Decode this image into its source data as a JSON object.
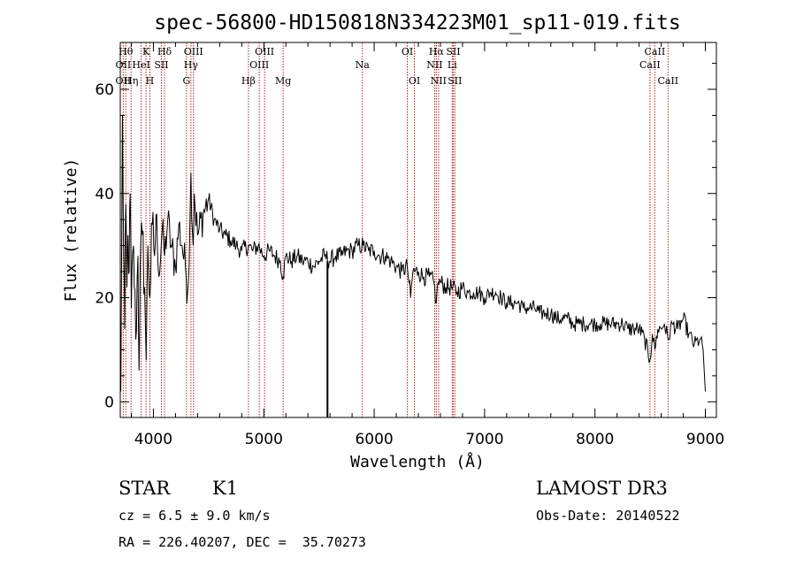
{
  "chart_data": {
    "type": "line",
    "title": "spec-56800-HD150818N334223M01_sp11-019.fits",
    "xlabel": "Wavelength (Å)",
    "ylabel": "Flux (relative)",
    "xlim": [
      3700,
      9100
    ],
    "ylim": [
      -3,
      69
    ],
    "xticks": [
      4000,
      5000,
      6000,
      7000,
      8000,
      9000
    ],
    "yticks": [
      0,
      20,
      40,
      60
    ],
    "series": [
      {
        "name": "spectrum",
        "x": [
          3705,
          3720,
          3730,
          3740,
          3750,
          3760,
          3770,
          3780,
          3790,
          3800,
          3820,
          3840,
          3860,
          3870,
          3880,
          3900,
          3920,
          3935,
          3950,
          3968,
          3990,
          4010,
          4030,
          4050,
          4080,
          4101,
          4130,
          4160,
          4200,
          4230,
          4260,
          4290,
          4310,
          4330,
          4340,
          4360,
          4370,
          4400,
          4450,
          4500,
          4550,
          4600,
          4650,
          4700,
          4750,
          4800,
          4861,
          4900,
          4950,
          5000,
          5050,
          5100,
          5150,
          5175,
          5200,
          5250,
          5300,
          5350,
          5400,
          5450,
          5500,
          5550,
          5600,
          5650,
          5700,
          5750,
          5800,
          5850,
          5900,
          5950,
          6000,
          6050,
          6100,
          6150,
          6200,
          6250,
          6300,
          6330,
          6350,
          6400,
          6450,
          6500,
          6540,
          6563,
          6580,
          6600,
          6650,
          6700,
          6750,
          6800,
          6850,
          6900,
          6950,
          7000,
          7050,
          7100,
          7150,
          7200,
          7250,
          7300,
          7350,
          7400,
          7450,
          7500,
          7550,
          7600,
          7650,
          7700,
          7750,
          7800,
          7850,
          7900,
          7950,
          8000,
          8050,
          8100,
          8150,
          8200,
          8250,
          8300,
          8350,
          8400,
          8450,
          8498,
          8520,
          8542,
          8570,
          8600,
          8630,
          8662,
          8700,
          8750,
          8800,
          8850,
          8900,
          8950,
          8980,
          9000
        ],
        "values": [
          2,
          55,
          30,
          14,
          38,
          22,
          32,
          25,
          40,
          18,
          30,
          12,
          28,
          6,
          26,
          32,
          22,
          8,
          30,
          20,
          34,
          28,
          36,
          24,
          33,
          28,
          35,
          30,
          26,
          34,
          30,
          26,
          21,
          33,
          44,
          30,
          40,
          32,
          36,
          39,
          35,
          33,
          32,
          31,
          30,
          29,
          30,
          29,
          30,
          28,
          29,
          28,
          27,
          24,
          28,
          27,
          28,
          27,
          27,
          26,
          27,
          28,
          27,
          28,
          28,
          29,
          29,
          30,
          30,
          29,
          29,
          28,
          28,
          27,
          26,
          25,
          26,
          20,
          25,
          25,
          24,
          24,
          23,
          19,
          23,
          23,
          22,
          22,
          21,
          22,
          21,
          21,
          21,
          20,
          21,
          21,
          20,
          19,
          19,
          19,
          18,
          18,
          18,
          17,
          17,
          17,
          16,
          16,
          16,
          15,
          15,
          15,
          15,
          15,
          15,
          15,
          15,
          15,
          15,
          14,
          14,
          14,
          12,
          8,
          13,
          10,
          14,
          14,
          15,
          12,
          15,
          14,
          16,
          13,
          11,
          12,
          10,
          2
        ],
        "spike": {
          "x": 5577,
          "y_bottom": -3,
          "y_top": 27
        }
      }
    ],
    "lines": [
      {
        "x": 3727,
        "labels": [
          "OII",
          "OII"
        ],
        "rows": [
          2,
          3
        ]
      },
      {
        "x": 3750,
        "labels": [
          "Hθ"
        ],
        "rows": [
          1
        ]
      },
      {
        "x": 3798,
        "labels": [
          "Hη"
        ],
        "rows": [
          3
        ]
      },
      {
        "x": 3889,
        "labels": [
          "HeI"
        ],
        "rows": [
          2
        ]
      },
      {
        "x": 3933,
        "labels": [
          "K"
        ],
        "rows": [
          1
        ]
      },
      {
        "x": 3968,
        "labels": [
          "H"
        ],
        "rows": [
          3
        ]
      },
      {
        "x": 4072,
        "labels": [
          "SII"
        ],
        "rows": [
          2
        ]
      },
      {
        "x": 4101,
        "labels": [
          "Hδ"
        ],
        "rows": [
          1
        ]
      },
      {
        "x": 4300,
        "labels": [
          "G"
        ],
        "rows": [
          3
        ]
      },
      {
        "x": 4340,
        "labels": [
          "Hγ"
        ],
        "rows": [
          2
        ]
      },
      {
        "x": 4363,
        "labels": [
          "OIII"
        ],
        "rows": [
          1
        ]
      },
      {
        "x": 4861,
        "labels": [
          "Hβ"
        ],
        "rows": [
          3
        ]
      },
      {
        "x": 4959,
        "labels": [
          "OIII"
        ],
        "rows": [
          2
        ]
      },
      {
        "x": 5007,
        "labels": [
          "OIII"
        ],
        "rows": [
          1
        ]
      },
      {
        "x": 5175,
        "labels": [
          "Mg"
        ],
        "rows": [
          3
        ]
      },
      {
        "x": 5893,
        "labels": [
          "Na"
        ],
        "rows": [
          2
        ]
      },
      {
        "x": 6300,
        "labels": [
          "OI"
        ],
        "rows": [
          1
        ]
      },
      {
        "x": 6364,
        "labels": [
          "OI"
        ],
        "rows": [
          3
        ]
      },
      {
        "x": 6548,
        "labels": [
          "NII"
        ],
        "rows": [
          2
        ]
      },
      {
        "x": 6563,
        "labels": [
          "Hα"
        ],
        "rows": [
          1
        ]
      },
      {
        "x": 6583,
        "labels": [
          "NII"
        ],
        "rows": [
          3
        ]
      },
      {
        "x": 6707,
        "labels": [
          "Li"
        ],
        "rows": [
          2
        ]
      },
      {
        "x": 6716,
        "labels": [
          "SII"
        ],
        "rows": [
          1
        ]
      },
      {
        "x": 6731,
        "labels": [
          "SII"
        ],
        "rows": [
          3
        ]
      },
      {
        "x": 8498,
        "labels": [
          "CaII"
        ],
        "rows": [
          2
        ]
      },
      {
        "x": 8542,
        "labels": [
          "CaII"
        ],
        "rows": [
          1
        ]
      },
      {
        "x": 8662,
        "labels": [
          "CaII"
        ],
        "rows": [
          3
        ]
      }
    ]
  },
  "info": {
    "class": "STAR",
    "subclass": "K1",
    "survey": "LAMOST DR3",
    "cz": "cz = 6.5 ± 9.0 km/s",
    "obs_date": "Obs-Date: 20140522",
    "coords": "RA = 226.40207, DEC =  35.70273"
  },
  "colors": {
    "line_marker": "#b22222",
    "spectrum": "#000000"
  }
}
